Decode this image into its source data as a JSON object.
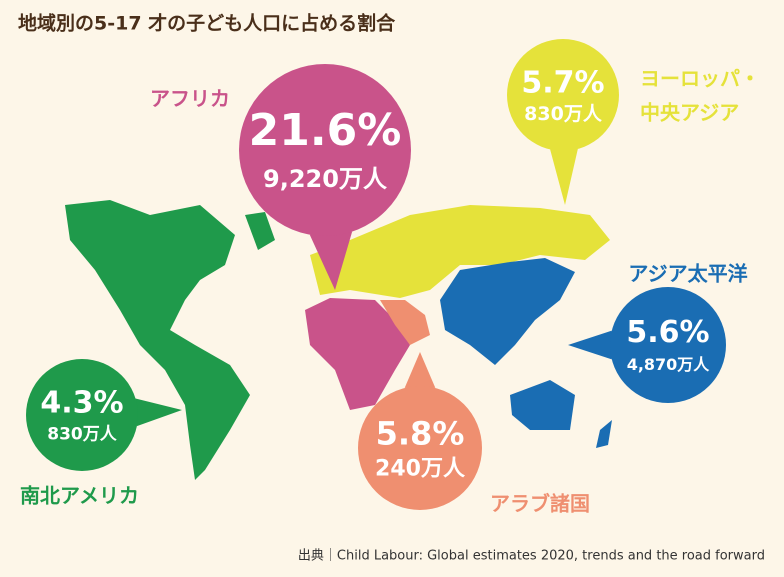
{
  "title": "地域別の5-17 才の子ども人口に占める割合",
  "regions": [
    {
      "name_lines": [
        "アフリカ"
      ],
      "share": "21.6%",
      "population": "9,220万人",
      "color": "#c9538a"
    },
    {
      "name_lines": [
        "ヨーロッパ・",
        "中央アジア"
      ],
      "share": "5.7%",
      "population": "830万人",
      "color": "#e5e23a"
    },
    {
      "name_lines": [
        "アジア太平洋"
      ],
      "share": "5.6%",
      "population": "4,870万人",
      "color": "#1a6db3"
    },
    {
      "name_lines": [
        "南北アメリカ"
      ],
      "share": "4.3%",
      "population": "830万人",
      "color": "#1f9a4b"
    },
    {
      "name_lines": [
        "アラブ諸国"
      ],
      "share": "5.8%",
      "population": "240万人",
      "color": "#ef8f70"
    }
  ],
  "source": "出典｜Child Labour: Global estimates 2020, trends and the road forward"
}
